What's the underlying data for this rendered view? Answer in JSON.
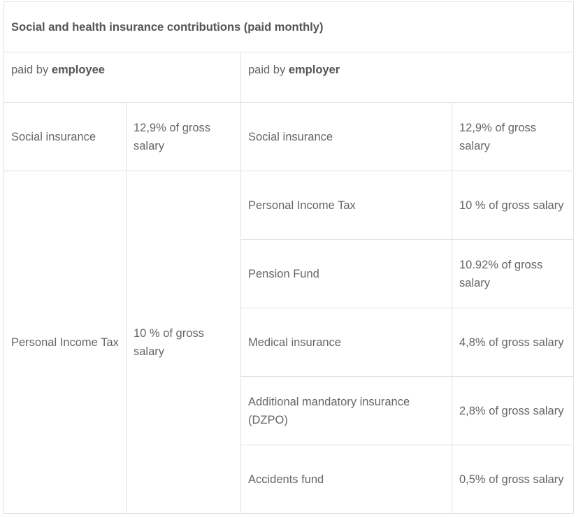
{
  "title": "Social and health insurance contributions (paid monthly)",
  "headers": {
    "employee_prefix": "paid by",
    "employee_bold": "employee",
    "employer_prefix": "paid by",
    "employer_bold": "employer"
  },
  "employee_rows": [
    {
      "name": "Social insurance",
      "rate": "12,9% of gross salary"
    },
    {
      "name": "Personal Income Tax",
      "rate": "10 % of gross salary"
    }
  ],
  "employer_rows": [
    {
      "name": "Social insurance",
      "rate": "12,9% of gross salary"
    },
    {
      "name": "Personal Income Tax",
      "rate": "10 % of gross salary"
    },
    {
      "name": "Pension Fund",
      "rate": "10.92% of gross salary"
    },
    {
      "name": "Medical insurance",
      "rate": "4,8% of gross salary"
    },
    {
      "name": "Additional mandatory insurance (DZPO)",
      "rate": "2,8% of gross salary"
    },
    {
      "name": "Accidents fund",
      "rate": "0,5% of gross salary"
    }
  ]
}
